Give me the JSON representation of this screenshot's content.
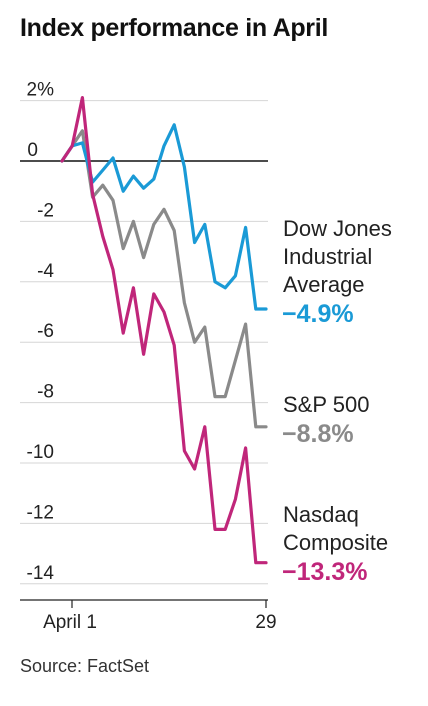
{
  "title": "Index performance in April",
  "source": "Source:  FactSet",
  "chart_data": {
    "type": "line",
    "title": "Index performance in April",
    "xlabel": "",
    "ylabel": "",
    "ylim": [
      -14.6,
      2.6
    ],
    "y_ticks": [
      2,
      0,
      -2,
      -4,
      -6,
      -8,
      -10,
      -12,
      -14
    ],
    "y_tick_labels": [
      "2%",
      "0",
      "-2",
      "-4",
      "-6",
      "-8",
      "-10",
      "-12",
      "-14"
    ],
    "x_tick_labels": [
      "April 1",
      "29"
    ],
    "grid": true,
    "x": [
      1,
      2,
      3,
      4,
      5,
      6,
      7,
      8,
      9,
      10,
      11,
      12,
      13,
      14,
      15,
      16,
      17,
      18,
      19,
      20,
      21
    ],
    "series": [
      {
        "name": "Dow Jones Industrial Average",
        "label_lines": [
          "Dow Jones",
          "Industrial",
          "Average"
        ],
        "final_label": "−4.9%",
        "color": "#1a9ad6",
        "values": [
          0,
          0.5,
          0.6,
          -0.7,
          -0.3,
          0.1,
          -1.0,
          -0.5,
          -0.9,
          -0.6,
          0.5,
          1.2,
          -0.2,
          -2.7,
          -2.1,
          -4.0,
          -4.2,
          -3.8,
          -2.2,
          -4.9,
          -4.9
        ]
      },
      {
        "name": "S&P 500",
        "label_lines": [
          "S&P 500"
        ],
        "final_label": "−8.8%",
        "color": "#8a8a8a",
        "values": [
          0,
          0.5,
          1.0,
          -1.2,
          -0.8,
          -1.3,
          -2.9,
          -2.0,
          -3.2,
          -2.1,
          -1.6,
          -2.3,
          -4.7,
          -6.0,
          -5.5,
          -7.8,
          -7.8,
          -6.6,
          -5.4,
          -8.8,
          -8.8
        ]
      },
      {
        "name": "Nasdaq Composite",
        "label_lines": [
          "Nasdaq",
          "Composite"
        ],
        "final_label": "−13.3%",
        "color": "#c0267a",
        "values": [
          0,
          0.5,
          2.1,
          -1.1,
          -2.5,
          -3.6,
          -5.7,
          -4.2,
          -6.4,
          -4.4,
          -5.0,
          -6.1,
          -9.6,
          -10.2,
          -8.8,
          -12.2,
          -12.2,
          -11.2,
          -9.5,
          -13.3,
          -13.3
        ]
      }
    ]
  }
}
